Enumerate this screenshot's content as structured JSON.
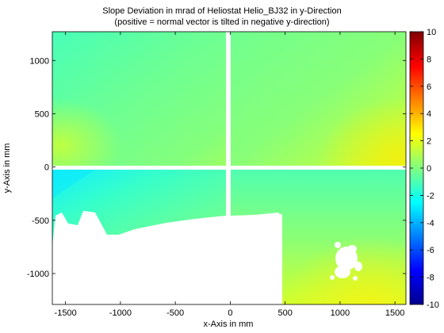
{
  "chart_data": {
    "type": "heatmap",
    "title": "Slope Deviation in mrad of Heliostat Helio_BJ32 in y-Direction",
    "subtitle": "(positive = normal vector is tilted in negative y-direction)",
    "xlabel": "x-Axis in mm",
    "ylabel": "y-Axis in mm",
    "xlim": [
      -1620,
      1600
    ],
    "ylim": [
      -1290,
      1270
    ],
    "x_ticks": [
      -1500,
      -1000,
      -500,
      0,
      500,
      1000,
      1500
    ],
    "x_tick_labels": [
      "-1500",
      "-1000",
      "-500",
      "0",
      "500",
      "1000",
      "1500"
    ],
    "y_ticks": [
      -1000,
      -500,
      0,
      500,
      1000
    ],
    "y_tick_labels": [
      "-1000",
      "-500",
      "0",
      "500",
      "1000"
    ],
    "colorbar": {
      "colormap": "jet",
      "range": [
        -10,
        10
      ],
      "ticks": [
        10,
        8,
        6,
        4,
        2,
        0,
        -2,
        -4,
        -6,
        -8,
        -10
      ],
      "tick_labels": [
        "10",
        "8",
        "6",
        "4",
        "2",
        "0",
        "-2",
        "-4",
        "-6",
        "-8",
        "-10"
      ]
    },
    "facets": [
      {
        "name": "upper-left",
        "x": [
          -1620,
          -20
        ],
        "y": [
          10,
          1270
        ],
        "mean_value": 0.3
      },
      {
        "name": "upper-right",
        "x": [
          20,
          1600
        ],
        "y": [
          10,
          1270
        ],
        "mean_value": 0.6
      },
      {
        "name": "lower-left",
        "x": [
          -1620,
          -20
        ],
        "y": [
          -1290,
          -10
        ],
        "mean_value": -0.6
      },
      {
        "name": "lower-right",
        "x": [
          20,
          1600
        ],
        "y": [
          -1290,
          -10
        ],
        "mean_value": 0.2
      }
    ],
    "missing_regions": [
      {
        "name": "lower-left-gap",
        "x_range": [
          -1620,
          480
        ],
        "y_range": [
          -1290,
          -430
        ]
      },
      {
        "name": "lower-right-spots",
        "center": [
          1070,
          -920
        ]
      }
    ],
    "grid": false
  }
}
